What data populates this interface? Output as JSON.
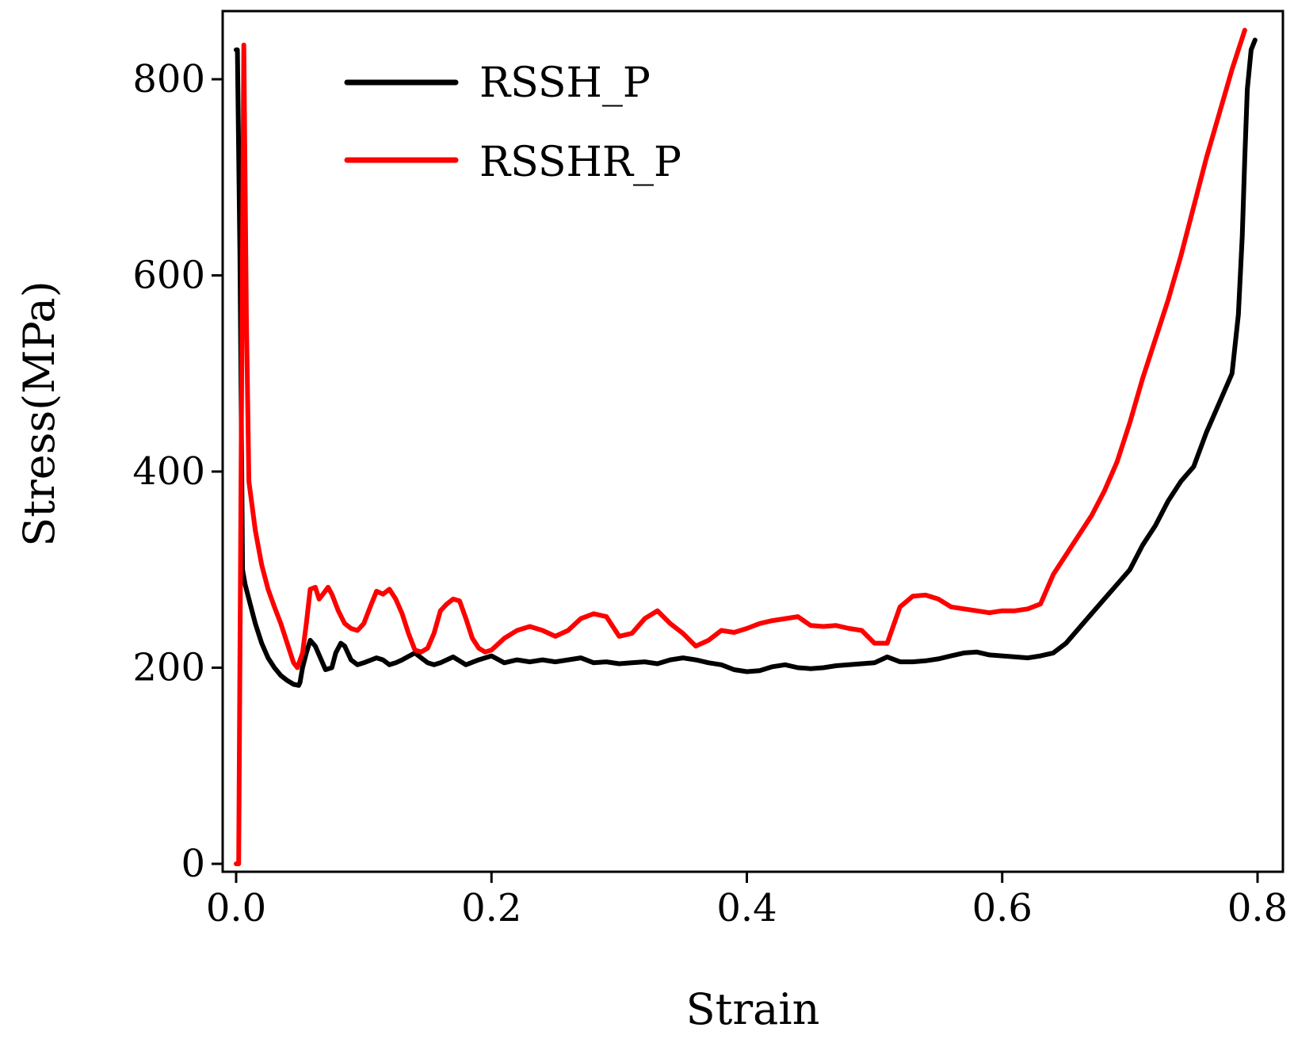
{
  "chart_data": {
    "type": "line",
    "title": "",
    "xlabel": "Strain",
    "ylabel": "Stress(MPa)",
    "xlim": [
      -0.01,
      0.82
    ],
    "ylim": [
      0,
      860
    ],
    "x_ticks": [
      0.0,
      0.2,
      0.4,
      0.6,
      0.8
    ],
    "x_tick_labels": [
      "0.0",
      "0.2",
      "0.4",
      "0.6",
      "0.8"
    ],
    "y_ticks": [
      0,
      200,
      400,
      600,
      800
    ],
    "y_tick_labels": [
      "0",
      "200",
      "400",
      "600",
      "800"
    ],
    "grid": false,
    "legend_position": "top-left",
    "series": [
      {
        "name": "RSSH_P",
        "color": "#000000",
        "x": [
          0.0,
          0.001,
          0.003,
          0.005,
          0.007,
          0.01,
          0.015,
          0.02,
          0.025,
          0.03,
          0.035,
          0.04,
          0.045,
          0.049,
          0.05,
          0.052,
          0.055,
          0.058,
          0.062,
          0.066,
          0.07,
          0.075,
          0.078,
          0.082,
          0.085,
          0.09,
          0.095,
          0.1,
          0.11,
          0.115,
          0.12,
          0.125,
          0.13,
          0.14,
          0.145,
          0.15,
          0.155,
          0.16,
          0.17,
          0.18,
          0.19,
          0.2,
          0.21,
          0.22,
          0.23,
          0.24,
          0.25,
          0.26,
          0.27,
          0.28,
          0.29,
          0.3,
          0.31,
          0.32,
          0.33,
          0.34,
          0.35,
          0.36,
          0.37,
          0.38,
          0.39,
          0.4,
          0.41,
          0.42,
          0.43,
          0.44,
          0.45,
          0.46,
          0.47,
          0.48,
          0.49,
          0.5,
          0.51,
          0.52,
          0.53,
          0.54,
          0.55,
          0.56,
          0.57,
          0.58,
          0.59,
          0.6,
          0.61,
          0.62,
          0.63,
          0.64,
          0.65,
          0.66,
          0.67,
          0.68,
          0.69,
          0.7,
          0.71,
          0.72,
          0.73,
          0.74,
          0.75,
          0.76,
          0.77,
          0.78,
          0.785,
          0.788,
          0.79,
          0.792,
          0.795,
          0.798
        ],
        "y": [
          830,
          830,
          620,
          300,
          285,
          270,
          245,
          225,
          210,
          200,
          192,
          187,
          183,
          182,
          185,
          200,
          215,
          228,
          222,
          210,
          198,
          200,
          215,
          225,
          222,
          208,
          203,
          205,
          210,
          208,
          203,
          205,
          208,
          215,
          210,
          205,
          203,
          205,
          211,
          203,
          208,
          212,
          205,
          208,
          206,
          208,
          206,
          208,
          210,
          205,
          206,
          204,
          205,
          206,
          204,
          208,
          210,
          208,
          205,
          203,
          198,
          196,
          197,
          201,
          203,
          200,
          199,
          200,
          202,
          203,
          204,
          205,
          211,
          206,
          206,
          207,
          209,
          212,
          215,
          216,
          213,
          212,
          211,
          210,
          212,
          215,
          225,
          240,
          255,
          270,
          285,
          300,
          325,
          345,
          370,
          390,
          405,
          440,
          470,
          500,
          560,
          640,
          720,
          790,
          830,
          840
        ]
      },
      {
        "name": "RSSHR_P",
        "color": "#ff0000",
        "x": [
          0.0,
          0.002,
          0.004,
          0.006,
          0.008,
          0.01,
          0.015,
          0.02,
          0.025,
          0.03,
          0.035,
          0.04,
          0.045,
          0.048,
          0.052,
          0.055,
          0.058,
          0.062,
          0.065,
          0.068,
          0.072,
          0.075,
          0.08,
          0.085,
          0.09,
          0.095,
          0.1,
          0.105,
          0.11,
          0.115,
          0.12,
          0.125,
          0.13,
          0.135,
          0.14,
          0.145,
          0.15,
          0.155,
          0.16,
          0.165,
          0.17,
          0.175,
          0.18,
          0.185,
          0.19,
          0.195,
          0.2,
          0.21,
          0.22,
          0.23,
          0.24,
          0.25,
          0.26,
          0.27,
          0.28,
          0.29,
          0.3,
          0.31,
          0.32,
          0.33,
          0.34,
          0.35,
          0.36,
          0.37,
          0.38,
          0.39,
          0.4,
          0.41,
          0.42,
          0.43,
          0.44,
          0.45,
          0.46,
          0.47,
          0.48,
          0.49,
          0.5,
          0.51,
          0.52,
          0.53,
          0.54,
          0.55,
          0.56,
          0.57,
          0.58,
          0.59,
          0.6,
          0.61,
          0.62,
          0.63,
          0.64,
          0.65,
          0.66,
          0.67,
          0.68,
          0.69,
          0.7,
          0.71,
          0.72,
          0.73,
          0.74,
          0.75,
          0.76,
          0.77,
          0.78,
          0.79
        ],
        "y": [
          0,
          0,
          420,
          835,
          560,
          390,
          340,
          305,
          280,
          262,
          245,
          225,
          205,
          200,
          215,
          245,
          280,
          282,
          270,
          275,
          282,
          275,
          258,
          245,
          240,
          238,
          245,
          262,
          278,
          275,
          280,
          270,
          255,
          235,
          218,
          216,
          220,
          235,
          258,
          265,
          270,
          268,
          250,
          230,
          220,
          216,
          218,
          230,
          238,
          242,
          238,
          232,
          238,
          250,
          255,
          252,
          232,
          235,
          250,
          258,
          245,
          235,
          222,
          228,
          238,
          236,
          240,
          245,
          248,
          250,
          252,
          243,
          242,
          243,
          240,
          238,
          225,
          225,
          262,
          273,
          274,
          270,
          262,
          260,
          258,
          256,
          258,
          258,
          260,
          265,
          295,
          315,
          335,
          355,
          380,
          410,
          450,
          495,
          535,
          575,
          620,
          670,
          720,
          765,
          810,
          850
        ]
      }
    ]
  }
}
